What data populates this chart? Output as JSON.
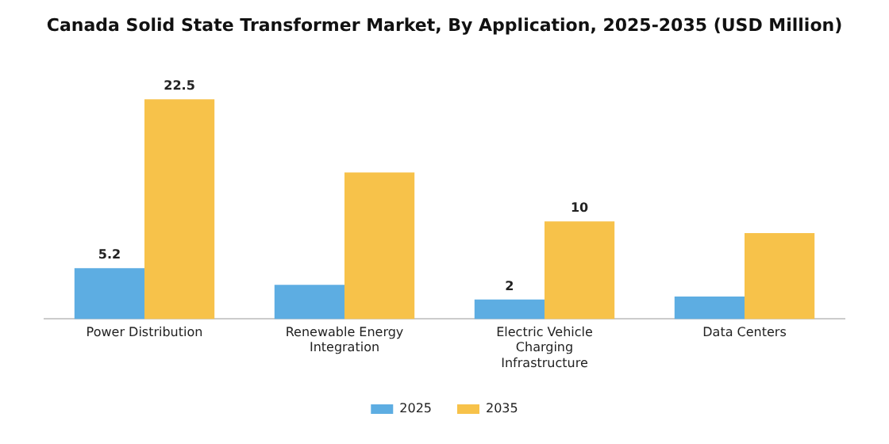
{
  "chart_data": {
    "type": "bar",
    "title": "Canada Solid State Transformer Market, By Application, 2025-2035 (USD Million)",
    "categories": [
      "Power Distribution",
      "Renewable Energy Integration",
      "Electric Vehicle Charging Infrastructure",
      "Data Centers"
    ],
    "series": [
      {
        "name": "2025",
        "color": "#5dade2",
        "values": [
          5.2,
          3.5,
          2,
          2.3
        ],
        "value_labels": [
          "5.2",
          null,
          "2",
          null
        ]
      },
      {
        "name": "2035",
        "color": "#f7c24a",
        "values": [
          22.5,
          15,
          10,
          8.8
        ],
        "value_labels": [
          "22.5",
          null,
          "10",
          null
        ]
      }
    ],
    "legend": "bottom",
    "grid": false
  }
}
